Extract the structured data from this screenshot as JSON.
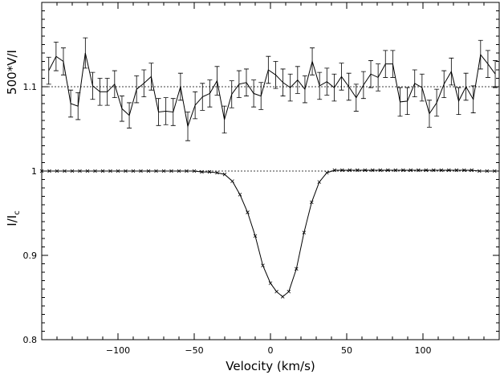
{
  "chart_data": {
    "type": "line",
    "xlabel": "Velocity (km/s)",
    "xlim": [
      -150,
      150
    ],
    "ylim": [
      0.8,
      1.2
    ],
    "ylabel_top": "500*V/I",
    "ylabel_bottom": "I/I",
    "ylabel_bottom_subscript": "c",
    "x_ticks": [
      -100,
      -50,
      0,
      50,
      100
    ],
    "x_tick_labels": [
      "−100",
      "−50",
      "0",
      "50",
      "100"
    ],
    "y_ticks": [
      0.8,
      0.9,
      1.0,
      1.1
    ],
    "y_tick_labels": [
      "0.8",
      "0.9",
      "1",
      "1.1"
    ],
    "reference_lines": [
      1.0,
      1.1
    ],
    "series": [
      {
        "style": "line-with-errorbars",
        "x": [
          -145.4,
          -140.6,
          -135.8,
          -131.0,
          -126.2,
          -121.4,
          -116.6,
          -111.8,
          -107.0,
          -102.2,
          -97.4,
          -92.6,
          -87.8,
          -83.0,
          -78.2,
          -73.4,
          -68.6,
          -63.8,
          -59.0,
          -54.2,
          -49.4,
          -44.6,
          -39.8,
          -35.0,
          -30.2,
          -25.4,
          -20.6,
          -15.8,
          -11.0,
          -6.2,
          -1.4,
          3.4,
          8.2,
          13.0,
          17.8,
          22.6,
          27.4,
          32.2,
          37.0,
          41.8,
          46.6,
          51.4,
          56.2,
          61.0,
          65.8,
          70.6,
          75.4,
          80.2,
          85.0,
          89.8,
          94.6,
          99.4,
          104.2,
          109.0,
          113.8,
          118.6,
          123.4,
          128.2,
          133.0,
          137.8,
          142.6,
          147.4
        ],
        "y": [
          1.119,
          1.136,
          1.13,
          1.08,
          1.077,
          1.14,
          1.101,
          1.094,
          1.094,
          1.103,
          1.074,
          1.066,
          1.097,
          1.104,
          1.112,
          1.07,
          1.071,
          1.07,
          1.1,
          1.053,
          1.078,
          1.088,
          1.092,
          1.107,
          1.061,
          1.091,
          1.103,
          1.105,
          1.092,
          1.089,
          1.12,
          1.114,
          1.105,
          1.099,
          1.108,
          1.097,
          1.13,
          1.101,
          1.106,
          1.099,
          1.112,
          1.1,
          1.087,
          1.102,
          1.115,
          1.111,
          1.127,
          1.127,
          1.082,
          1.083,
          1.104,
          1.099,
          1.068,
          1.081,
          1.103,
          1.118,
          1.083,
          1.1,
          1.085,
          1.138,
          1.127,
          1.115
        ],
        "error": [
          0.016,
          0.017,
          0.016,
          0.016,
          0.016,
          0.018,
          0.016,
          0.016,
          0.016,
          0.016,
          0.015,
          0.015,
          0.016,
          0.016,
          0.016,
          0.016,
          0.016,
          0.016,
          0.016,
          0.017,
          0.016,
          0.016,
          0.016,
          0.017,
          0.016,
          0.016,
          0.016,
          0.016,
          0.016,
          0.016,
          0.016,
          0.016,
          0.016,
          0.016,
          0.016,
          0.016,
          0.016,
          0.016,
          0.016,
          0.016,
          0.016,
          0.016,
          0.016,
          0.016,
          0.016,
          0.016,
          0.016,
          0.016,
          0.017,
          0.016,
          0.016,
          0.016,
          0.016,
          0.016,
          0.016,
          0.016,
          0.016,
          0.016,
          0.016,
          0.017,
          0.016,
          0.016
        ]
      },
      {
        "style": "line-with-cross-markers",
        "x": [
          -150,
          -145,
          -140,
          -135,
          -130,
          -125,
          -120,
          -115,
          -110,
          -105,
          -100,
          -95,
          -90,
          -85,
          -80,
          -75,
          -70,
          -65,
          -60,
          -55,
          -50,
          -45,
          -40,
          -35,
          -30,
          -25,
          -20,
          -15,
          -10,
          -5,
          0,
          4,
          8,
          12,
          17,
          22,
          27,
          32,
          37,
          42,
          47,
          52,
          57,
          62,
          67,
          72,
          77,
          82,
          87,
          92,
          97,
          102,
          107,
          112,
          117,
          122,
          127,
          132,
          137,
          142,
          147
        ],
        "y": [
          1.0,
          1.0,
          1.0,
          1.0,
          1.0,
          1.0,
          1.0,
          1.0,
          1.0,
          1.0,
          1.0,
          1.0,
          1.0,
          1.0,
          1.0,
          1.0,
          1.0,
          1.0,
          1.0,
          1.0,
          1.0,
          0.999,
          0.999,
          0.998,
          0.996,
          0.988,
          0.972,
          0.951,
          0.923,
          0.888,
          0.867,
          0.857,
          0.851,
          0.857,
          0.884,
          0.927,
          0.963,
          0.987,
          0.998,
          1.001,
          1.001,
          1.001,
          1.001,
          1.001,
          1.001,
          1.001,
          1.001,
          1.001,
          1.001,
          1.001,
          1.001,
          1.001,
          1.001,
          1.001,
          1.001,
          1.001,
          1.001,
          1.001,
          1.0,
          1.0,
          1.0
        ]
      }
    ]
  }
}
